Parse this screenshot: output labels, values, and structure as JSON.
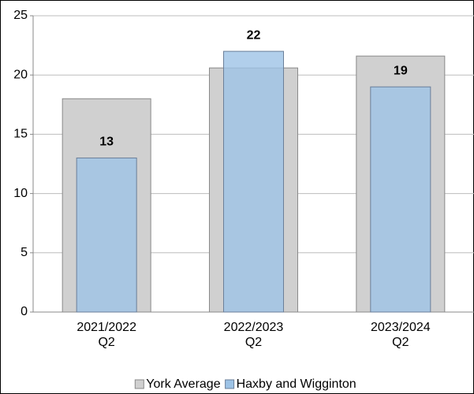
{
  "chart_data": {
    "type": "bar",
    "categories": [
      "2021/2022\nQ2",
      "2022/2023\nQ2",
      "2023/2024\nQ2"
    ],
    "series": [
      {
        "name": "York Average",
        "color": "#d0d0d0",
        "values": [
          18,
          20.6,
          21.6
        ]
      },
      {
        "name": "Haxby and Wigginton",
        "color": "#9dc3e6",
        "values": [
          13,
          22,
          19
        ]
      }
    ],
    "ylim": [
      0,
      25
    ],
    "yticks": [
      0,
      5,
      10,
      15,
      20,
      25
    ],
    "grid": true,
    "legend": "bottom"
  }
}
